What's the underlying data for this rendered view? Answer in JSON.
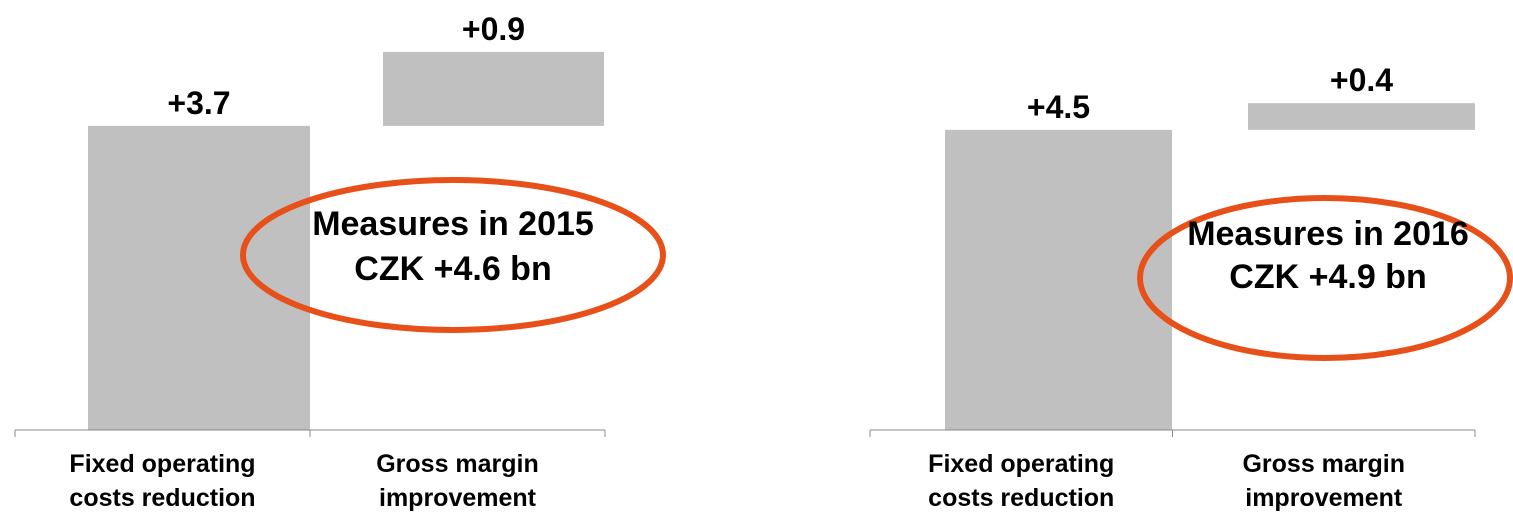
{
  "chart_data": [
    {
      "type": "waterfall",
      "categories": [
        "Fixed operating costs reduction",
        "Gross margin improvement"
      ],
      "values": [
        3.7,
        0.9
      ],
      "value_labels": [
        "+3.7",
        "+0.9"
      ],
      "color": "#c0c0c0",
      "annotation": [
        "Measures in 2015",
        "CZK +4.6 bn"
      ],
      "annotation_color": "#e8501a"
    },
    {
      "type": "waterfall",
      "categories": [
        "Fixed operating costs reduction",
        "Gross margin improvement"
      ],
      "values": [
        4.5,
        0.4
      ],
      "value_labels": [
        "+4.5",
        "+0.4"
      ],
      "color": "#c0c0c0",
      "annotation": [
        "Measures in 2016",
        "CZK +4.9 bn"
      ],
      "annotation_color": "#e8501a"
    }
  ]
}
